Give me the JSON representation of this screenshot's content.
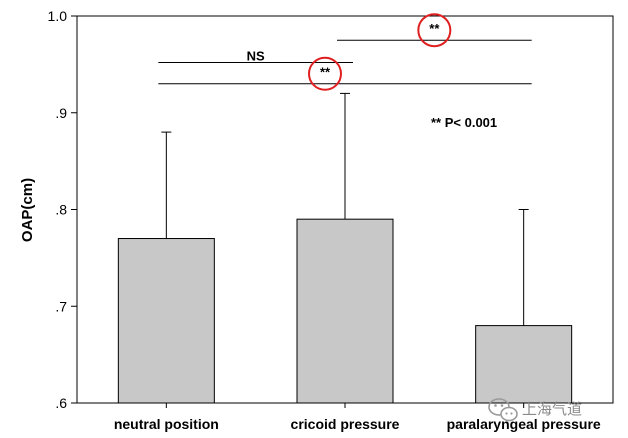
{
  "chart_data": {
    "type": "bar",
    "categories": [
      "neutral position",
      "cricoid pressure",
      "paralaryngeal pressure"
    ],
    "series": [
      {
        "values": [
          0.77,
          0.79,
          0.68
        ],
        "error_upper": [
          0.88,
          0.92,
          0.8
        ]
      }
    ],
    "ylabel": "OAP(cm)",
    "ylim": [
      0.6,
      1.0
    ],
    "yticks": [
      {
        "value": 0.6,
        "label": ".6"
      },
      {
        "value": 0.7,
        "label": ".7"
      },
      {
        "value": 0.8,
        "label": ".8"
      },
      {
        "value": 0.9,
        "label": ".9"
      },
      {
        "value": 1.0,
        "label": "1.0"
      }
    ],
    "bar_color": "#c8c8c8",
    "comparisons": [
      {
        "from": 0,
        "to": 1,
        "level": 0.952,
        "label": "NS",
        "circled": false
      },
      {
        "from": 0,
        "to": 2,
        "level": 0.93,
        "label": "**",
        "circled": true
      },
      {
        "from": 1,
        "to": 2,
        "level": 0.975,
        "label": "**",
        "circled": true
      }
    ],
    "significance_note": "** P< 0.001",
    "highlight_color": "#e02020"
  },
  "watermark": {
    "text": "上海气道",
    "icon": "wechat-icon"
  }
}
